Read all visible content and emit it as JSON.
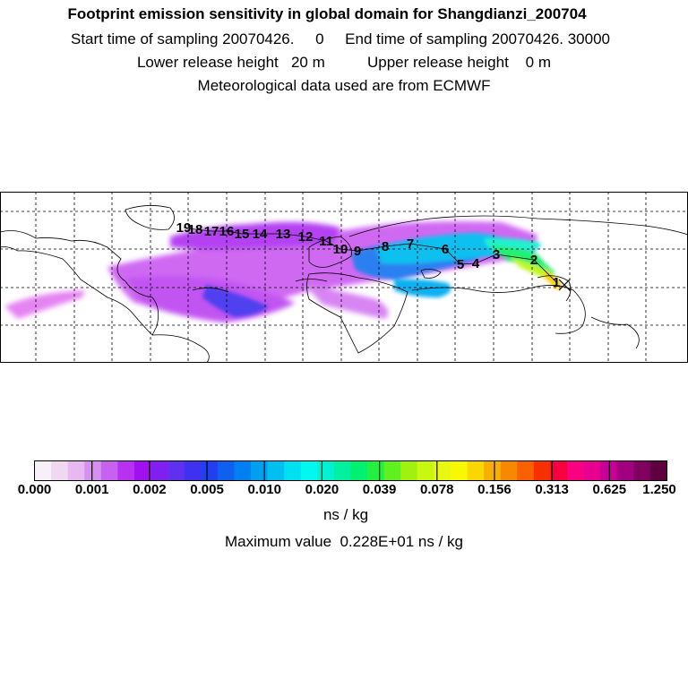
{
  "header": {
    "title": "Footprint emission sensitivity in global domain for Shangdianzi_200704",
    "sampling_line": "Start time of sampling 20070426.     0     End time of sampling 20070426. 30000",
    "release_line": "Lower release height   20 m          Upper release height    0 m",
    "met_line": "Meteorological data used are from ECMWF"
  },
  "colors": {
    "background": "#ffffff",
    "grid": "#000000",
    "coastline": "#000000"
  },
  "map": {
    "projection": "equirectangular",
    "grid": "dashed",
    "station": "Shangdianzi",
    "trajectory_labels": [
      "1",
      "2",
      "3",
      "4",
      "5",
      "6",
      "7",
      "8",
      "9",
      "10",
      "11",
      "12",
      "13",
      "14",
      "15",
      "16",
      "17",
      "18",
      "19"
    ]
  },
  "colorbar": {
    "colors": [
      "#f8f0f8",
      "#f0d8f0",
      "#e8b8f0",
      "#d890f0",
      "#c860f0",
      "#b830f0",
      "#a010f0",
      "#8020f0",
      "#6030f0",
      "#4030f0",
      "#2040f0",
      "#1060f0",
      "#0080f0",
      "#00a0f0",
      "#00c0f0",
      "#00e0f0",
      "#00f8f0",
      "#00f0d0",
      "#00f0a0",
      "#00f070",
      "#20f040",
      "#60f020",
      "#a0f010",
      "#c8f810",
      "#e8f810",
      "#f8f800",
      "#f8d800",
      "#f8b000",
      "#f88800",
      "#f86000",
      "#f83000",
      "#f80040",
      "#f80080",
      "#e80090",
      "#c80098",
      "#a00080",
      "#800060",
      "#600040"
    ],
    "tick_labels": [
      "0.000",
      "0.001",
      "0.002",
      "0.005",
      "0.010",
      "0.020",
      "0.039",
      "0.078",
      "0.156",
      "0.313",
      "0.625",
      "1.250"
    ],
    "units": "ns / kg"
  },
  "footer": {
    "max_value": "Maximum value  0.228E+01 ns / kg"
  }
}
